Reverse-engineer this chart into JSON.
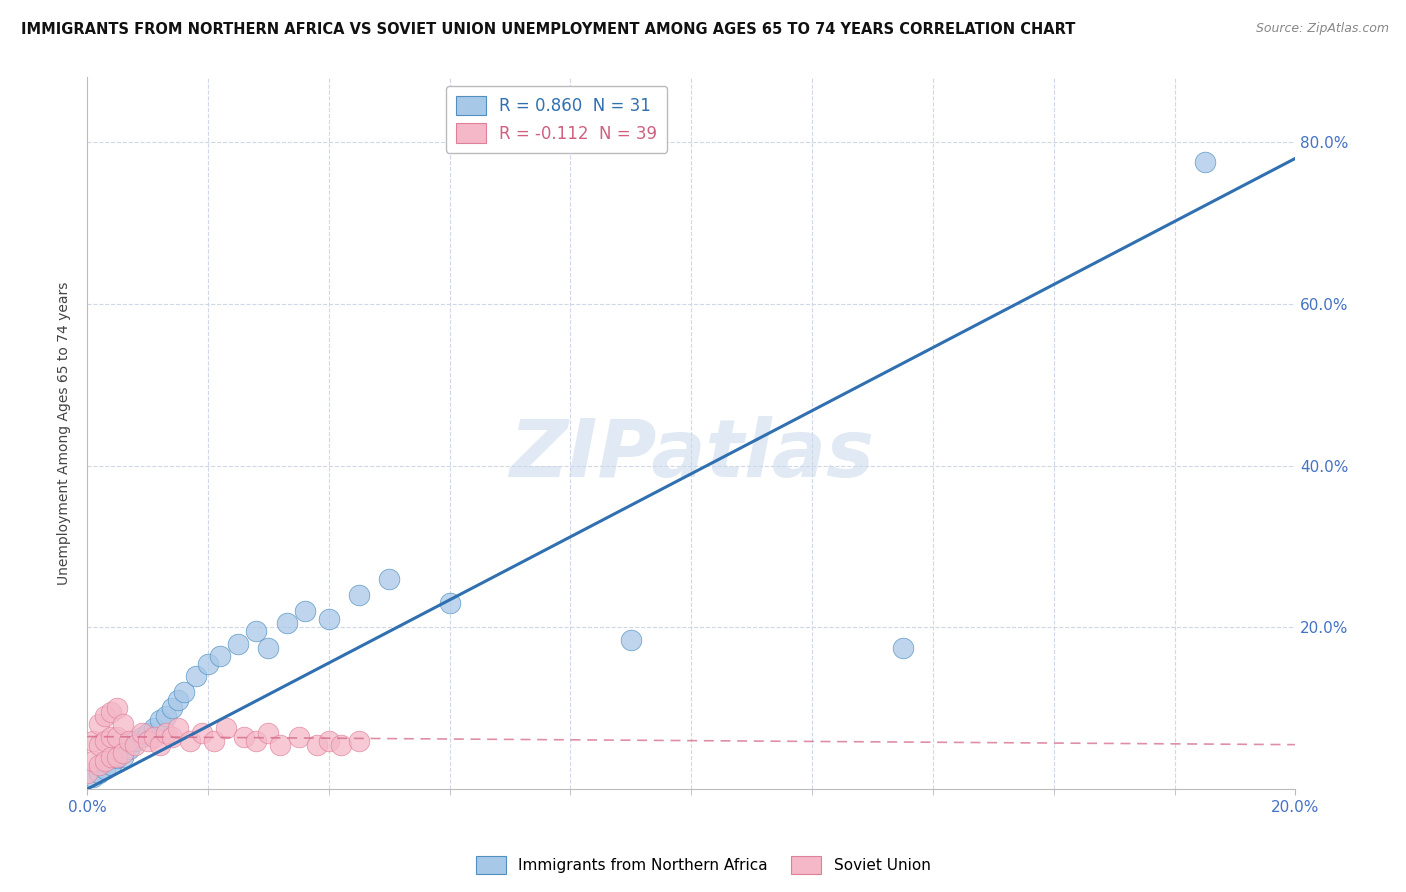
{
  "title": "IMMIGRANTS FROM NORTHERN AFRICA VS SOVIET UNION UNEMPLOYMENT AMONG AGES 65 TO 74 YEARS CORRELATION CHART",
  "source": "Source: ZipAtlas.com",
  "ylabel": "Unemployment Among Ages 65 to 74 years",
  "xlim": [
    0.0,
    0.2
  ],
  "ylim": [
    0.0,
    0.88
  ],
  "blue_r": 0.86,
  "blue_n": 31,
  "pink_r": -0.112,
  "pink_n": 39,
  "blue_color": "#a8c8e8",
  "pink_color": "#f4b8c8",
  "blue_edge_color": "#5090c0",
  "pink_edge_color": "#e08098",
  "blue_line_color": "#3070b0",
  "pink_line_color": "#d06080",
  "watermark": "ZIPatlas",
  "legend_label_blue": "Immigrants from Northern Africa",
  "legend_label_pink": "Soviet Union",
  "blue_scatter_x": [
    0.001,
    0.002,
    0.003,
    0.004,
    0.005,
    0.006,
    0.007,
    0.008,
    0.009,
    0.01,
    0.011,
    0.012,
    0.013,
    0.014,
    0.015,
    0.016,
    0.018,
    0.02,
    0.022,
    0.025,
    0.028,
    0.03,
    0.033,
    0.036,
    0.04,
    0.045,
    0.05,
    0.06,
    0.09,
    0.135,
    0.185
  ],
  "blue_scatter_y": [
    0.015,
    0.02,
    0.025,
    0.03,
    0.038,
    0.04,
    0.05,
    0.06,
    0.065,
    0.07,
    0.075,
    0.085,
    0.09,
    0.1,
    0.11,
    0.12,
    0.14,
    0.155,
    0.165,
    0.18,
    0.195,
    0.175,
    0.205,
    0.22,
    0.21,
    0.24,
    0.26,
    0.23,
    0.185,
    0.175,
    0.775
  ],
  "pink_scatter_x": [
    0.0,
    0.001,
    0.001,
    0.002,
    0.002,
    0.002,
    0.003,
    0.003,
    0.003,
    0.004,
    0.004,
    0.004,
    0.005,
    0.005,
    0.005,
    0.006,
    0.006,
    0.007,
    0.008,
    0.009,
    0.01,
    0.011,
    0.012,
    0.013,
    0.014,
    0.015,
    0.017,
    0.019,
    0.021,
    0.023,
    0.026,
    0.028,
    0.03,
    0.032,
    0.035,
    0.038,
    0.04,
    0.042,
    0.045
  ],
  "pink_scatter_y": [
    0.02,
    0.035,
    0.06,
    0.03,
    0.055,
    0.08,
    0.035,
    0.06,
    0.09,
    0.04,
    0.065,
    0.095,
    0.04,
    0.065,
    0.1,
    0.045,
    0.08,
    0.06,
    0.055,
    0.07,
    0.06,
    0.065,
    0.055,
    0.07,
    0.065,
    0.075,
    0.06,
    0.07,
    0.06,
    0.075,
    0.065,
    0.06,
    0.07,
    0.055,
    0.065,
    0.055,
    0.06,
    0.055,
    0.06
  ],
  "blue_line_x": [
    0.0,
    0.2
  ],
  "blue_line_y": [
    0.0,
    0.78
  ],
  "pink_line_x": [
    0.0,
    0.2
  ],
  "pink_line_y": [
    0.065,
    0.055
  ],
  "background_color": "#ffffff",
  "grid_color": "#d0d8e8",
  "tick_color": "#4472c4",
  "right_y_ticks": [
    0.2,
    0.4,
    0.6,
    0.8
  ],
  "right_y_labels": [
    "20.0%",
    "40.0%",
    "60.0%",
    "80.0%"
  ],
  "x_minor_ticks": [
    0.02,
    0.04,
    0.06,
    0.08,
    0.1,
    0.12,
    0.14,
    0.16,
    0.18
  ]
}
